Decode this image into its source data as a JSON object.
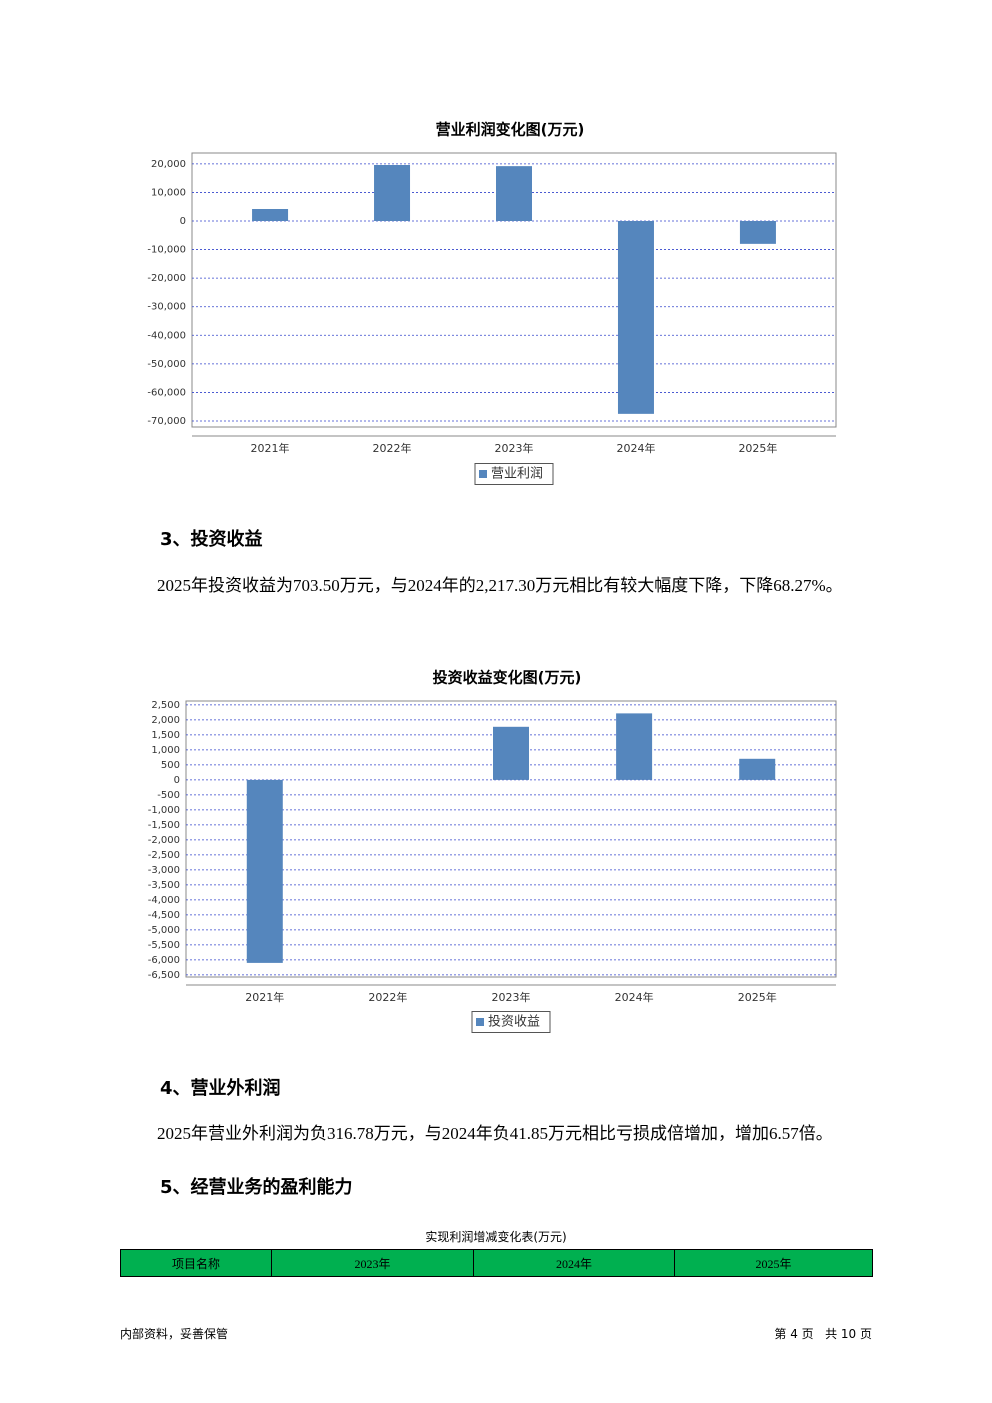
{
  "chart_data": [
    {
      "type": "bar",
      "title": "营业利润变化图(万元)",
      "categories": [
        "2021年",
        "2022年",
        "2023年",
        "2024年",
        "2025年"
      ],
      "series": [
        {
          "name": "营业利润",
          "color": "#5586bd",
          "values": [
            4200,
            19600,
            19200,
            -67500,
            -8000
          ]
        }
      ],
      "ylim": [
        -72100,
        23800
      ],
      "yticks": [
        {
          "value": 20000,
          "label": "20,000"
        },
        {
          "value": 10000,
          "label": "10,000"
        },
        0,
        {
          "value": -10000,
          "label": "-10,000"
        },
        {
          "value": -20000,
          "label": "-20,000"
        },
        {
          "value": -30000,
          "label": "-30,000"
        },
        {
          "value": -40000,
          "label": "-40,000"
        },
        {
          "value": -50000,
          "label": "-50,000"
        },
        {
          "value": -60000,
          "label": "-60,000"
        },
        {
          "value": -70000,
          "label": "-70,000"
        }
      ],
      "grid": true
    },
    {
      "type": "bar",
      "title": "投资收益变化图(万元)",
      "categories": [
        "2021年",
        "2022年",
        "2023年",
        "2024年",
        "2025年"
      ],
      "series": [
        {
          "name": "投资收益",
          "color": "#5586bd",
          "values": [
            -6100,
            0,
            1770,
            2217.3,
            703.5
          ]
        }
      ],
      "ylim": [
        -6570,
        2630
      ],
      "yticks": [
        {
          "value": 2500,
          "label": "2,500"
        },
        {
          "value": 2000,
          "label": "2,000"
        },
        {
          "value": 1500,
          "label": "1,500"
        },
        {
          "value": 1000,
          "label": "1,000"
        },
        500,
        0,
        -500,
        {
          "value": -1000,
          "label": "-1,000"
        },
        {
          "value": -1500,
          "label": "-1,500"
        },
        {
          "value": -2000,
          "label": "-2,000"
        },
        {
          "value": -2500,
          "label": "-2,500"
        },
        {
          "value": -3000,
          "label": "-3,000"
        },
        {
          "value": -3500,
          "label": "-3,500"
        },
        {
          "value": -4000,
          "label": "-4,000"
        },
        {
          "value": -4500,
          "label": "-4,500"
        },
        {
          "value": -5000,
          "label": "-5,000"
        },
        {
          "value": -5500,
          "label": "-5,500"
        },
        {
          "value": -6000,
          "label": "-6,000"
        },
        {
          "value": -6500,
          "label": "-6,500"
        }
      ],
      "grid": true
    }
  ],
  "headings": [
    "3、投资收益",
    "4、营业外利润",
    "5、经营业务的盈利能力"
  ],
  "paragraphs": [
    "2025年投资收益为703.50万元，与2024年的2,217.30万元相比有较大幅度下降，下降68.27%。",
    "2025年营业外利润为负316.78万元，与2024年负41.85万元相比亏损成倍增加，增加6.57倍。"
  ],
  "table": {
    "title": "实现利润增减变化表(万元)",
    "header": [
      "项目名称",
      "2023年",
      "2024年",
      "2025年"
    ]
  },
  "footer": {
    "left": "内部资料，妥善保管",
    "right": "第 4 页   共 10 页"
  }
}
